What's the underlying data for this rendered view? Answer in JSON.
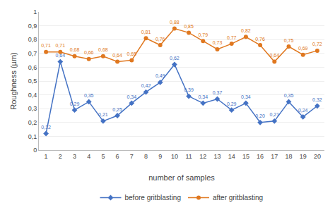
{
  "chart_data": {
    "type": "line",
    "x": [
      1,
      2,
      3,
      4,
      5,
      6,
      7,
      8,
      9,
      10,
      11,
      12,
      13,
      14,
      15,
      16,
      17,
      18,
      19,
      20
    ],
    "xlabel": "number of samples",
    "ylabel": "Roughness (µm)",
    "xlim": [
      0.5,
      20.5
    ],
    "xticks": [
      1,
      2,
      3,
      4,
      5,
      6,
      7,
      8,
      9,
      10,
      11,
      12,
      13,
      14,
      15,
      16,
      17,
      18,
      19,
      20
    ],
    "ylim": [
      0,
      1.0
    ],
    "yticks": [
      0,
      {
        "value": 0.1,
        "label": "0,1"
      },
      {
        "value": 0.2,
        "label": "0,2"
      },
      {
        "value": 0.3,
        "label": "0,3"
      },
      {
        "value": 0.4,
        "label": "0,4"
      },
      {
        "value": 0.5,
        "label": "0,5"
      },
      {
        "value": 0.6,
        "label": "0,6"
      },
      {
        "value": 0.7,
        "label": "0,7"
      },
      {
        "value": 0.8,
        "label": "0,8"
      },
      {
        "value": 0.9,
        "label": "0,9"
      },
      1
    ],
    "grid": true,
    "legend": "bottom",
    "data_labels": true,
    "series": [
      {
        "name": "before gritblasting",
        "color": "#4472c4",
        "marker": "diamond",
        "values": [
          0.12,
          0.64,
          0.29,
          0.35,
          0.21,
          0.25,
          0.34,
          0.42,
          0.49,
          0.62,
          0.39,
          0.34,
          0.37,
          0.29,
          0.34,
          0.2,
          0.21,
          0.35,
          0.24,
          0.32
        ],
        "value_labels": [
          "0,12",
          "0,64",
          "0,29",
          "0,35",
          "0,21",
          "0,25",
          "0,34",
          "0,42",
          "0,49",
          "0,62",
          "0,39",
          "0,34",
          "0,37",
          "0,29",
          "0,34",
          "0,20",
          "0,21",
          "0,35",
          "0,24",
          "0,32"
        ]
      },
      {
        "name": "after gritblasting",
        "color": "#e07820",
        "marker": "circle",
        "values": [
          0.71,
          0.71,
          0.68,
          0.66,
          0.68,
          0.64,
          0.65,
          0.81,
          0.76,
          0.88,
          0.85,
          0.79,
          0.73,
          0.77,
          0.82,
          0.76,
          0.64,
          0.75,
          0.69,
          0.72
        ],
        "value_labels": [
          "0,71",
          "0,71",
          "0,68",
          "0,66",
          "0,68",
          "0,64",
          "0,65",
          "0,81",
          "0,76",
          "0,88",
          "0,85",
          "0,79",
          "0,73",
          "0,77",
          "0,82",
          "0,76",
          "0,64",
          "0,75",
          "0,69",
          "0,72"
        ]
      }
    ]
  }
}
